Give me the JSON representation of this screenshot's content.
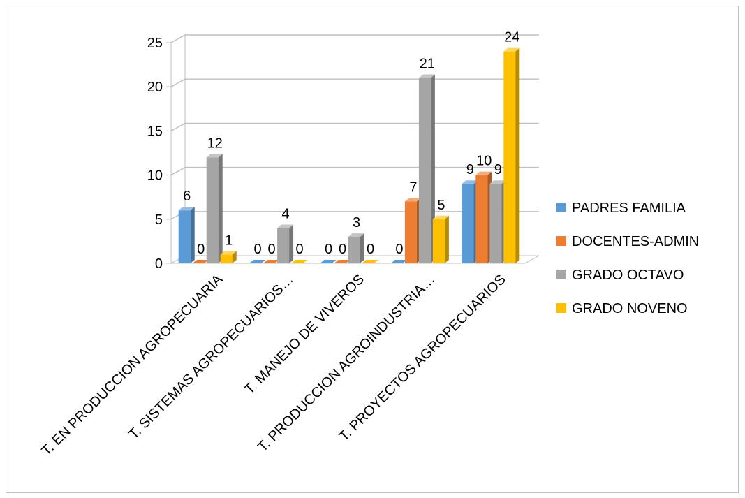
{
  "chart_data": {
    "type": "bar",
    "title": "",
    "xlabel": "",
    "ylabel": "",
    "ylim": [
      0,
      25
    ],
    "yticks": [
      0,
      5,
      10,
      15,
      20,
      25
    ],
    "grid": true,
    "legend_position": "right",
    "style": "3d-clustered-column",
    "categories": [
      "T. EN PRODUCCION AGROPECUARIA",
      "T. SISTEMAS AGROPECUARIOS…",
      "T. MANEJO DE VIVEROS",
      "T. PRODUCCION AGROINDUSTRIA…",
      "T. PROYECTOS AGROPECUARIOS"
    ],
    "series": [
      {
        "name": "PADRES FAMILIA",
        "color": "#5B9BD5",
        "values": [
          6,
          0,
          0,
          0,
          9
        ]
      },
      {
        "name": "DOCENTES-ADMIN",
        "color": "#ED7D31",
        "values": [
          0,
          0,
          0,
          7,
          10
        ]
      },
      {
        "name": "GRADO OCTAVO",
        "color": "#A5A5A5",
        "values": [
          12,
          4,
          3,
          21,
          9
        ]
      },
      {
        "name": "GRADO NOVENO",
        "color": "#FFC000",
        "values": [
          1,
          0,
          0,
          5,
          24
        ]
      }
    ],
    "data_labels": [
      [
        "6",
        "0",
        "12",
        "1"
      ],
      [
        "0",
        "0",
        "4",
        "0"
      ],
      [
        "0",
        "0",
        "3",
        "0"
      ],
      [
        "0",
        "7",
        "21",
        "5"
      ],
      [
        "9",
        "10",
        "9",
        "24"
      ]
    ]
  }
}
